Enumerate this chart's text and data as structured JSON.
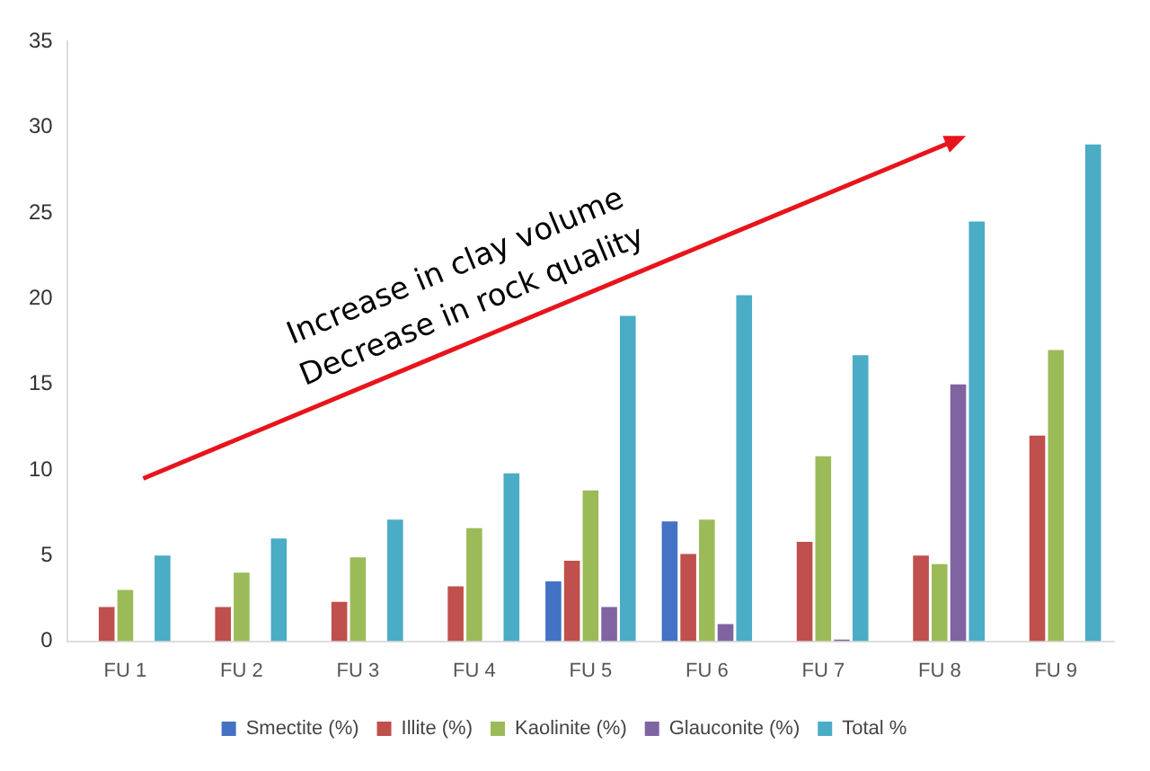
{
  "chart_data": {
    "type": "bar",
    "categories": [
      "FU 1",
      "FU 2",
      "FU 3",
      "FU 4",
      "FU 5",
      "FU 6",
      "FU 7",
      "FU 8",
      "FU 9"
    ],
    "series": [
      {
        "name": "Smectite (%)",
        "color": "#4472c4",
        "values": [
          null,
          null,
          null,
          null,
          3.5,
          7,
          null,
          null,
          null
        ]
      },
      {
        "name": "Illite (%)",
        "color": "#c0504d",
        "values": [
          2,
          2,
          2.3,
          3.2,
          4.7,
          5.1,
          5.8,
          5,
          12
        ]
      },
      {
        "name": "Kaolinite (%)",
        "color": "#9bbb59",
        "values": [
          3,
          4,
          4.9,
          6.6,
          8.8,
          7.1,
          10.8,
          4.5,
          17
        ]
      },
      {
        "name": "Glauconite (%)",
        "color": "#8064a2",
        "values": [
          null,
          null,
          null,
          null,
          2,
          1,
          0.1,
          15,
          null
        ]
      },
      {
        "name": "Total %",
        "color": "#4bacc6",
        "values": [
          5,
          6,
          7.1,
          9.8,
          19,
          20.2,
          16.7,
          24.5,
          29
        ]
      }
    ],
    "ylim": [
      0,
      35
    ],
    "yticks": [
      0,
      5,
      10,
      15,
      20,
      25,
      30,
      35
    ],
    "grid": false,
    "legend": "bottom",
    "annotations": [
      "Increase in clay volume",
      "Decrease in rock quality"
    ]
  }
}
